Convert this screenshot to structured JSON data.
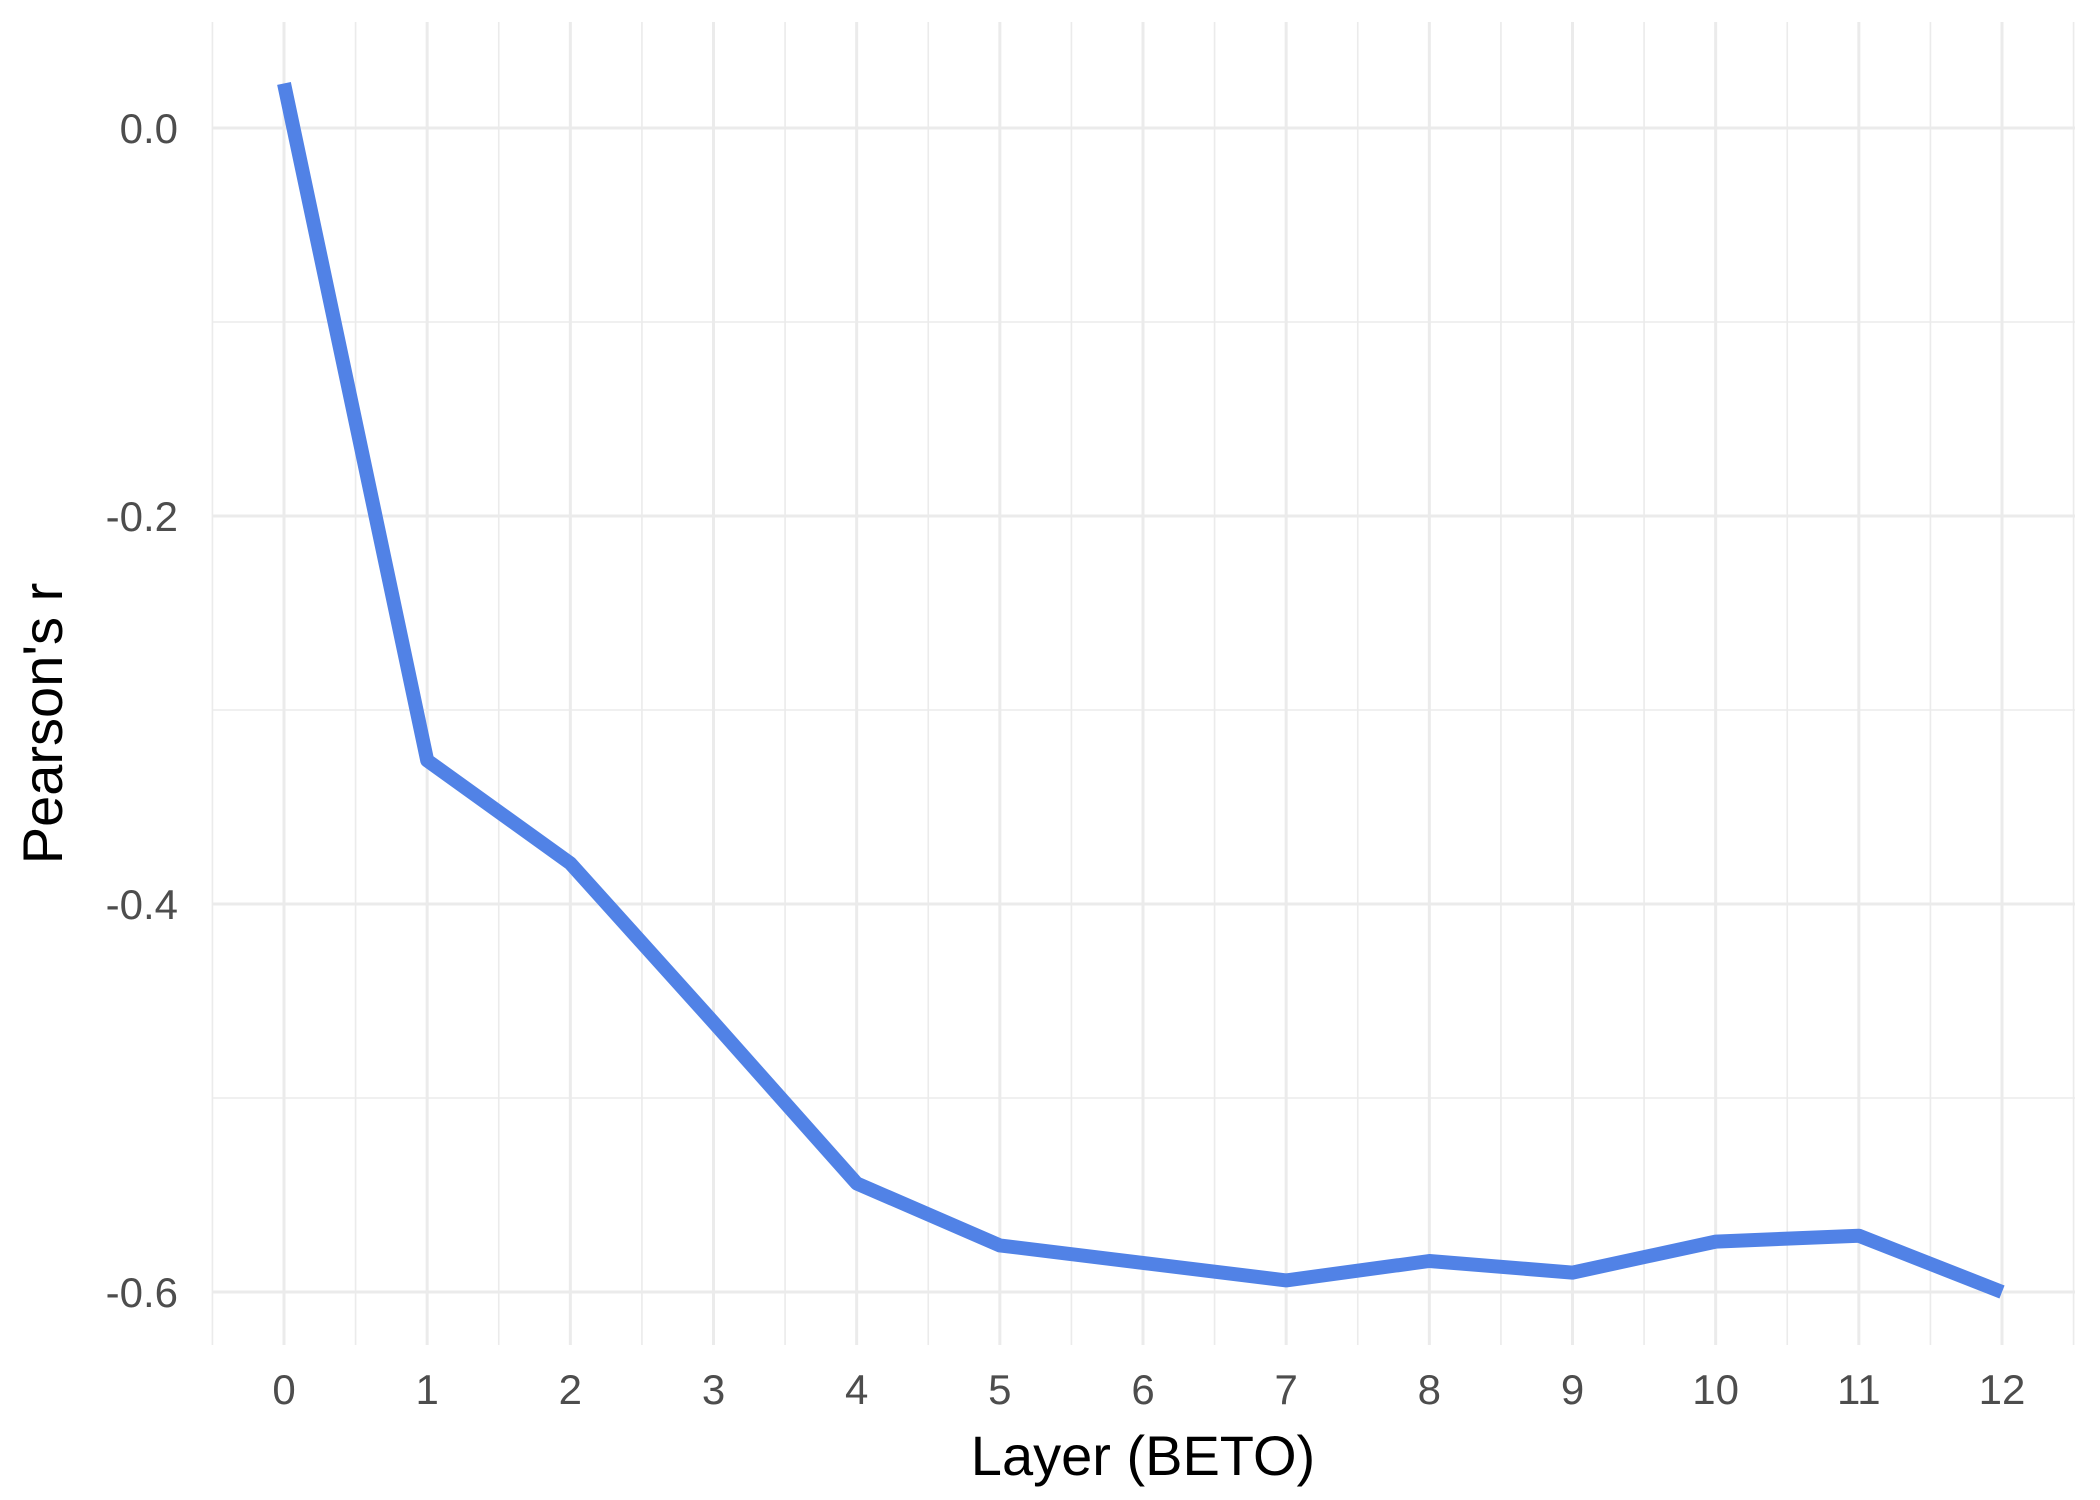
{
  "chart_data": {
    "type": "line",
    "title": "",
    "xlabel": "Layer (BETO)",
    "ylabel": "Pearson's r",
    "x": [
      0,
      1,
      2,
      3,
      4,
      5,
      6,
      7,
      8,
      9,
      10,
      11,
      12
    ],
    "x_ticks": [
      "0",
      "1",
      "2",
      "3",
      "4",
      "5",
      "6",
      "7",
      "8",
      "9",
      "10",
      "11",
      "12"
    ],
    "xlim": [
      -0.5,
      12.5
    ],
    "ylim": [
      -0.63,
      0.05
    ],
    "y_ticks": [
      0.0,
      -0.2,
      -0.4,
      -0.6
    ],
    "y_tick_labels": [
      "0.0",
      "-0.2",
      "-0.4",
      "-0.6"
    ],
    "y_minor_ticks": [
      -0.1,
      -0.3,
      -0.5
    ],
    "grid": true,
    "legend": "none",
    "series": [
      {
        "color": "#5182e6",
        "values": [
          0.023,
          -0.326,
          -0.379,
          -0.461,
          -0.544,
          -0.576,
          -0.585,
          -0.594,
          -0.584,
          -0.59,
          -0.574,
          -0.571,
          -0.6
        ]
      }
    ]
  }
}
